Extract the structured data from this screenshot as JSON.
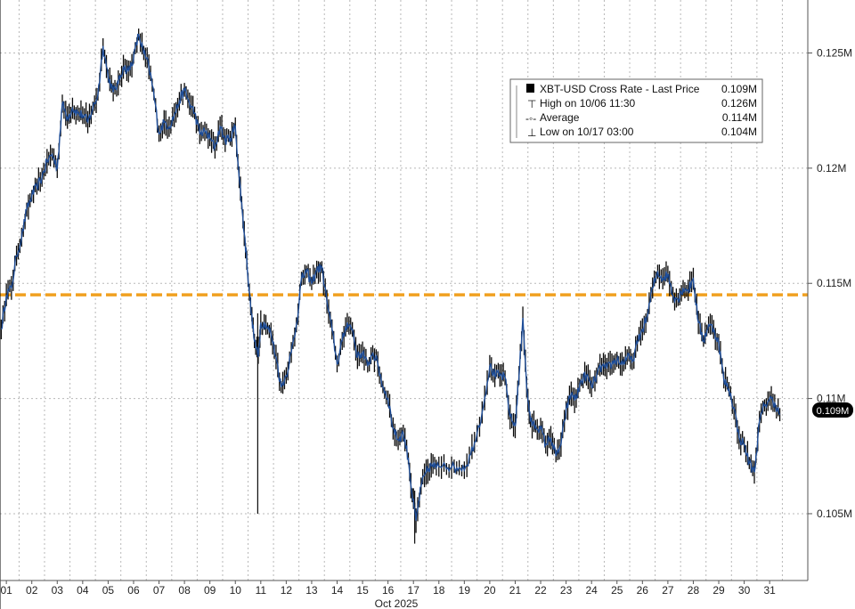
{
  "chart_data": {
    "type": "line",
    "subtype": "candlestick",
    "ticker": "XBT-USD Cross Rate",
    "x_month_label": "Oct 2025",
    "x_day_ticks": [
      "01",
      "02",
      "03",
      "04",
      "05",
      "06",
      "07",
      "08",
      "09",
      "10",
      "11",
      "12",
      "13",
      "14",
      "15",
      "16",
      "17",
      "18",
      "19",
      "20",
      "21",
      "22",
      "23",
      "24",
      "25",
      "26",
      "27",
      "28",
      "29",
      "30",
      "31"
    ],
    "y_ticks": [
      {
        "value": 0.105,
        "label": "0.105M"
      },
      {
        "value": 0.11,
        "label": "0.11M"
      },
      {
        "value": 0.115,
        "label": "0.115M"
      },
      {
        "value": 0.12,
        "label": "0.12M"
      },
      {
        "value": 0.125,
        "label": "0.125M"
      }
    ],
    "ylim": [
      0.1021,
      0.1273
    ],
    "xlim": [
      0.75,
      32.5
    ],
    "grid": "vertical-dotted",
    "average_value": 0.1145,
    "last_price": {
      "value": 0.1093,
      "label": "0.109M"
    },
    "legend": {
      "position": "top-right",
      "rows": [
        {
          "label": "XBT-USD Cross Rate - Last Price",
          "value": "0.109M"
        },
        {
          "label": "High on 10/06 11:30",
          "value": "0.126M"
        },
        {
          "label": "Average",
          "value": "0.114M"
        },
        {
          "label": "Low on 10/17 03:00",
          "value": "0.104M"
        }
      ]
    },
    "colors": {
      "line": "#1f4e99",
      "candle": "#0a0a0a",
      "average": "#f0a020",
      "grid": "#b8b8b8",
      "last_badge": "#000000"
    },
    "series": [
      {
        "name": "XBT-USD Cross Rate - Last Price",
        "points": [
          [
            0.8,
            0.113
          ],
          [
            1.0,
            0.1145
          ],
          [
            1.2,
            0.1148
          ],
          [
            1.4,
            0.1162
          ],
          [
            1.6,
            0.117
          ],
          [
            1.8,
            0.1182
          ],
          [
            2.0,
            0.1188
          ],
          [
            2.2,
            0.1192
          ],
          [
            2.4,
            0.1196
          ],
          [
            2.6,
            0.1203
          ],
          [
            2.8,
            0.1206
          ],
          [
            3.0,
            0.12
          ],
          [
            3.2,
            0.1228
          ],
          [
            3.4,
            0.1222
          ],
          [
            3.6,
            0.1226
          ],
          [
            3.8,
            0.1224
          ],
          [
            4.0,
            0.1223
          ],
          [
            4.2,
            0.122
          ],
          [
            4.4,
            0.1226
          ],
          [
            4.6,
            0.1232
          ],
          [
            4.8,
            0.1253
          ],
          [
            5.0,
            0.124
          ],
          [
            5.2,
            0.1233
          ],
          [
            5.4,
            0.1237
          ],
          [
            5.6,
            0.1244
          ],
          [
            5.8,
            0.1242
          ],
          [
            6.0,
            0.1248
          ],
          [
            6.2,
            0.1258
          ],
          [
            6.4,
            0.125
          ],
          [
            6.6,
            0.1244
          ],
          [
            6.8,
            0.1232
          ],
          [
            7.0,
            0.1215
          ],
          [
            7.2,
            0.122
          ],
          [
            7.4,
            0.1218
          ],
          [
            7.6,
            0.1223
          ],
          [
            7.8,
            0.1229
          ],
          [
            8.0,
            0.1234
          ],
          [
            8.2,
            0.1228
          ],
          [
            8.4,
            0.1224
          ],
          [
            8.6,
            0.1215
          ],
          [
            8.8,
            0.1216
          ],
          [
            9.0,
            0.1213
          ],
          [
            9.2,
            0.1209
          ],
          [
            9.4,
            0.1218
          ],
          [
            9.6,
            0.1212
          ],
          [
            9.8,
            0.1213
          ],
          [
            10.0,
            0.1218
          ],
          [
            10.15,
            0.1196
          ],
          [
            10.3,
            0.1178
          ],
          [
            10.45,
            0.116
          ],
          [
            10.6,
            0.114
          ],
          [
            10.75,
            0.1125
          ],
          [
            10.9,
            0.1118
          ],
          [
            11.0,
            0.1133
          ],
          [
            11.2,
            0.1132
          ],
          [
            11.4,
            0.1128
          ],
          [
            11.6,
            0.1118
          ],
          [
            11.8,
            0.1105
          ],
          [
            12.0,
            0.111
          ],
          [
            12.2,
            0.112
          ],
          [
            12.4,
            0.1132
          ],
          [
            12.6,
            0.1152
          ],
          [
            12.8,
            0.1155
          ],
          [
            13.0,
            0.115
          ],
          [
            13.2,
            0.1156
          ],
          [
            13.4,
            0.1157
          ],
          [
            13.6,
            0.1142
          ],
          [
            13.8,
            0.113
          ],
          [
            14.0,
            0.1115
          ],
          [
            14.2,
            0.1125
          ],
          [
            14.4,
            0.1133
          ],
          [
            14.6,
            0.113
          ],
          [
            14.8,
            0.1118
          ],
          [
            15.0,
            0.112
          ],
          [
            15.2,
            0.1114
          ],
          [
            15.4,
            0.112
          ],
          [
            15.6,
            0.1115
          ],
          [
            15.8,
            0.1105
          ],
          [
            16.0,
            0.11
          ],
          [
            16.2,
            0.1087
          ],
          [
            16.4,
            0.1082
          ],
          [
            16.6,
            0.1085
          ],
          [
            16.8,
            0.1074
          ],
          [
            16.95,
            0.1058
          ],
          [
            17.1,
            0.1047
          ],
          [
            17.3,
            0.1062
          ],
          [
            17.5,
            0.1068
          ],
          [
            17.7,
            0.1071
          ],
          [
            17.9,
            0.107
          ],
          [
            18.2,
            0.1072
          ],
          [
            18.5,
            0.107
          ],
          [
            18.8,
            0.107
          ],
          [
            19.1,
            0.1071
          ],
          [
            19.4,
            0.1081
          ],
          [
            19.7,
            0.1094
          ],
          [
            20.0,
            0.1114
          ],
          [
            20.2,
            0.111
          ],
          [
            20.4,
            0.111
          ],
          [
            20.6,
            0.1109
          ],
          [
            20.8,
            0.1092
          ],
          [
            21.0,
            0.1088
          ],
          [
            21.15,
            0.111
          ],
          [
            21.3,
            0.1135
          ],
          [
            21.45,
            0.1105
          ],
          [
            21.6,
            0.109
          ],
          [
            21.8,
            0.1088
          ],
          [
            22.0,
            0.1087
          ],
          [
            22.2,
            0.108
          ],
          [
            22.4,
            0.1083
          ],
          [
            22.6,
            0.1075
          ],
          [
            22.8,
            0.108
          ],
          [
            23.0,
            0.1095
          ],
          [
            23.2,
            0.1102
          ],
          [
            23.4,
            0.11
          ],
          [
            23.6,
            0.1108
          ],
          [
            23.8,
            0.111
          ],
          [
            24.0,
            0.1105
          ],
          [
            24.2,
            0.111
          ],
          [
            24.4,
            0.1114
          ],
          [
            24.6,
            0.1113
          ],
          [
            24.8,
            0.1115
          ],
          [
            25.0,
            0.1117
          ],
          [
            25.2,
            0.1115
          ],
          [
            25.4,
            0.1118
          ],
          [
            25.6,
            0.1116
          ],
          [
            25.8,
            0.1124
          ],
          [
            26.0,
            0.113
          ],
          [
            26.2,
            0.1136
          ],
          [
            26.4,
            0.1148
          ],
          [
            26.6,
            0.1155
          ],
          [
            26.8,
            0.1152
          ],
          [
            27.0,
            0.1154
          ],
          [
            27.2,
            0.1145
          ],
          [
            27.4,
            0.1143
          ],
          [
            27.6,
            0.1148
          ],
          [
            27.8,
            0.1147
          ],
          [
            28.0,
            0.1152
          ],
          [
            28.2,
            0.1133
          ],
          [
            28.4,
            0.1125
          ],
          [
            28.6,
            0.1132
          ],
          [
            28.8,
            0.113
          ],
          [
            29.0,
            0.1124
          ],
          [
            29.2,
            0.1108
          ],
          [
            29.4,
            0.1104
          ],
          [
            29.6,
            0.1096
          ],
          [
            29.8,
            0.1083
          ],
          [
            30.0,
            0.108
          ],
          [
            30.2,
            0.1072
          ],
          [
            30.4,
            0.1068
          ],
          [
            30.6,
            0.109
          ],
          [
            30.8,
            0.1097
          ],
          [
            31.0,
            0.11
          ],
          [
            31.2,
            0.1098
          ],
          [
            31.4,
            0.1093
          ]
        ]
      }
    ]
  }
}
